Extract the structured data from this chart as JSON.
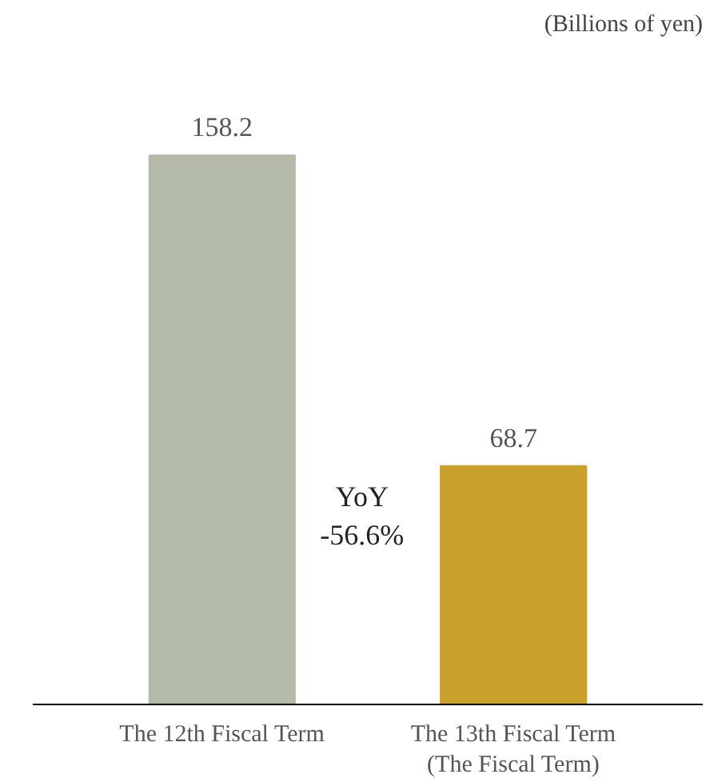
{
  "chart_data": {
    "type": "bar",
    "subtitle": "(Billions of yen)",
    "categories": [
      "The 12th Fiscal Term",
      "The 13th Fiscal Term\n(The Fiscal Term)"
    ],
    "values": [
      158.2,
      68.7
    ],
    "colors": [
      "#b3baa8",
      "#c9a02a"
    ],
    "data_labels": true,
    "annotations": [
      "YoY\n-56.6%"
    ],
    "grid": false
  }
}
